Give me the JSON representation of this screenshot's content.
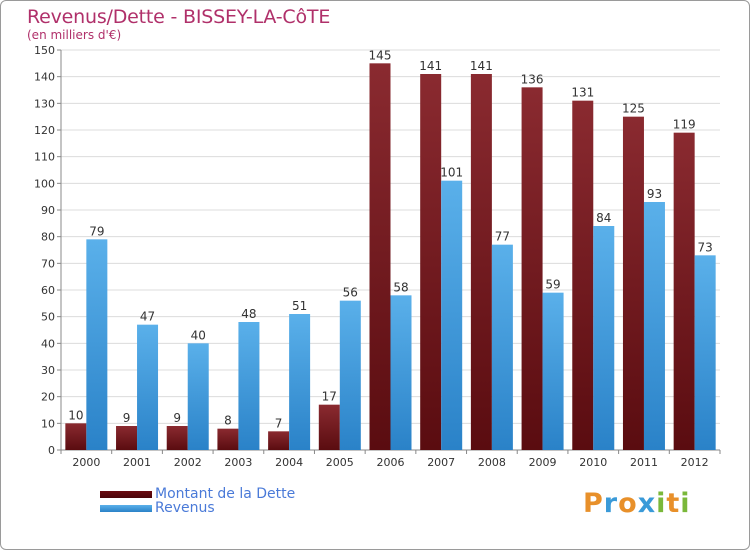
{
  "header": {
    "title": "Revenus/Dette - BISSEY-LA-CôTE",
    "subtitle": "(en milliers d'€)"
  },
  "legend": {
    "dette_label": "Montant de la Dette",
    "revenus_label": "Revenus"
  },
  "logo": {
    "text": "Proxiti",
    "letters": [
      "P",
      "r",
      "o",
      "x",
      "i",
      "t",
      "i"
    ],
    "colors": [
      "#e8902a",
      "#3a9ad8",
      "#e8902a",
      "#3a9ad8",
      "#7ab83a",
      "#e8902a",
      "#7ab83a"
    ]
  },
  "colors": {
    "dette": "#7a1a1f",
    "revenus": "#3e9ce0"
  },
  "chart_data": {
    "type": "bar",
    "title": "Revenus/Dette - BISSEY-LA-CôTE",
    "subtitle": "(en milliers d'€)",
    "xlabel": "",
    "ylabel": "",
    "ylim": [
      0,
      150
    ],
    "yticks": [
      0,
      10,
      20,
      30,
      40,
      50,
      60,
      70,
      80,
      90,
      100,
      110,
      120,
      130,
      140,
      150
    ],
    "grid": true,
    "legend_position": "bottom-left",
    "categories": [
      "2000",
      "2001",
      "2002",
      "2003",
      "2004",
      "2005",
      "2006",
      "2007",
      "2008",
      "2009",
      "2010",
      "2011",
      "2012"
    ],
    "series": [
      {
        "name": "Montant de la Dette",
        "color": "#7a1a1f",
        "values": [
          10,
          9,
          9,
          8,
          7,
          17,
          145,
          141,
          141,
          136,
          131,
          125,
          119
        ]
      },
      {
        "name": "Revenus",
        "color": "#3e9ce0",
        "values": [
          79,
          47,
          40,
          48,
          51,
          56,
          58,
          101,
          77,
          59,
          84,
          93,
          73
        ]
      }
    ]
  }
}
